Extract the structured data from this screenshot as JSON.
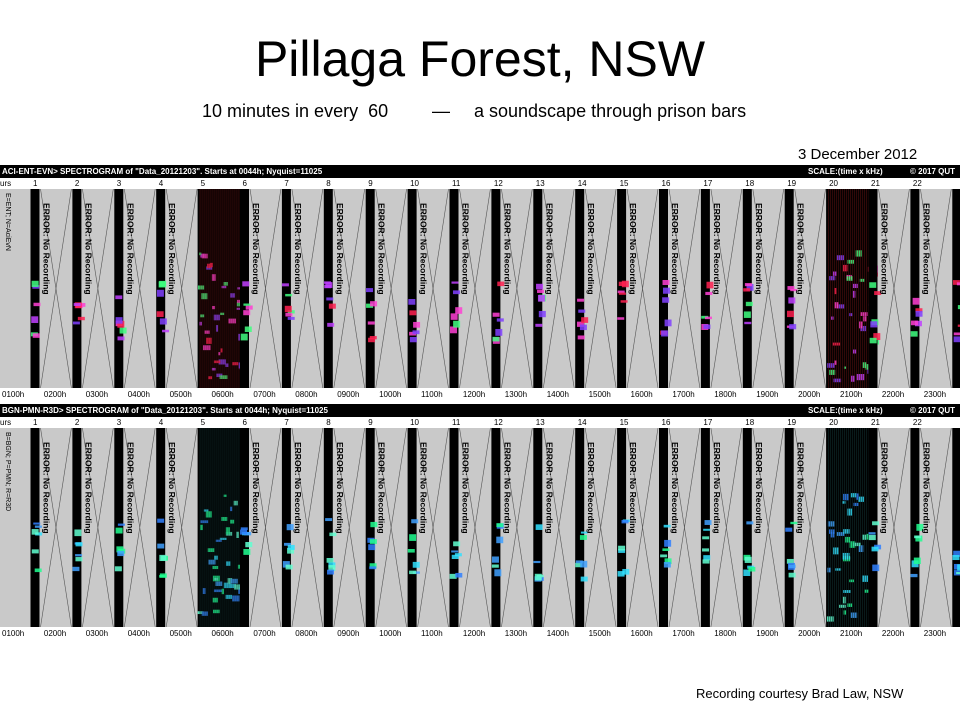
{
  "title": "Pillaga Forest, NSW",
  "subtitle_left": "10 minutes in every  60",
  "subtitle_dash": "—",
  "subtitle_right": "a soundscape through prison bars",
  "date": "3 December 2012",
  "credit": "Recording  courtesy Brad Law, NSW",
  "error_text": "ERROR: No Recording",
  "hours_label": "urs",
  "panels": [
    {
      "header_left": "ACI-ENT-EVN> SPECTROGRAM  of \"Data_20121203\".  Starts at 0044h; Nyquist=11025",
      "header_scale": "SCALE:(time x kHz)",
      "header_copyright": "© 2017 QUT",
      "side_label": "E=ENT; N=AciEvN",
      "palette": "pinkred"
    },
    {
      "header_left": "BGN-PMN-R3D> SPECTROGRAM  of \"Data_20121203\".  Starts at 0044h; Nyquist=11025",
      "header_scale": "SCALE:(time x kHz)",
      "header_copyright": "© 2017 QUT",
      "side_label": "B=BGN; P=PMN; R=R3D",
      "palette": "bluegreen"
    }
  ],
  "top_ticks": [
    "1",
    "2",
    "3",
    "4",
    "5",
    "6",
    "7",
    "8",
    "9",
    "10",
    "11",
    "12",
    "13",
    "14",
    "15",
    "16",
    "17",
    "18",
    "19",
    "20",
    "21",
    "22"
  ],
  "bottom_ticks": [
    "0100h",
    "0200h",
    "0300h",
    "0400h",
    "0500h",
    "0600h",
    "0700h",
    "0800h",
    "0900h",
    "1000h",
    "1100h",
    "1200h",
    "1300h",
    "1400h",
    "1500h",
    "1600h",
    "1700h",
    "1800h",
    "1900h",
    "2000h",
    "2100h",
    "2200h",
    "2300h"
  ]
}
